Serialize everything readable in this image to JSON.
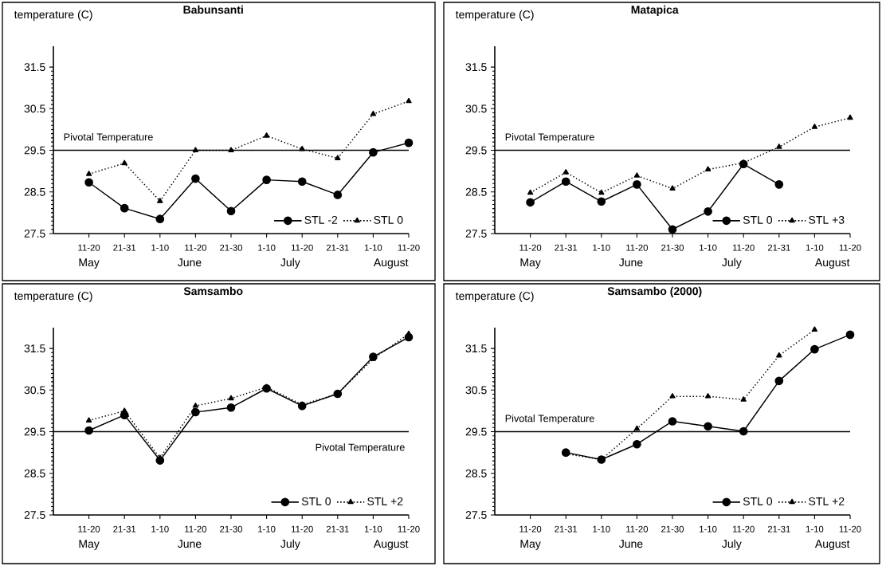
{
  "chart_data": [
    {
      "type": "line",
      "title": "Babunsanti",
      "ylabel": "temperature (C)",
      "categories": [
        "11-20",
        "21-31",
        "1-10",
        "11-20",
        "21-30",
        "1-10",
        "11-20",
        "21-31",
        "1-10",
        "11-20"
      ],
      "annotations": [
        "May",
        "June",
        "July",
        "August"
      ],
      "series": [
        {
          "name": "STL -2",
          "color": "#000000",
          "marker": "circle",
          "line_style": "solid",
          "values": [
            28.73,
            28.11,
            27.85,
            28.82,
            28.04,
            28.79,
            28.75,
            28.43,
            29.45,
            29.68
          ]
        },
        {
          "name": "STL 0",
          "color": "#000000",
          "marker": "triangle",
          "line_style": "dotted",
          "values": [
            28.93,
            29.19,
            28.28,
            29.5,
            29.5,
            29.85,
            29.53,
            29.31,
            30.37,
            30.68
          ]
        }
      ],
      "ylim": [
        27.5,
        32
      ],
      "yticks": [
        27.5,
        28.5,
        29.5,
        30.5,
        31.5
      ],
      "ref_lines": [
        {
          "axis": "y",
          "value": 29.5,
          "label": "Pivotal Temperature"
        }
      ],
      "legend": "bottom right"
    },
    {
      "type": "line",
      "title": "Matapica",
      "ylabel": "temperature (C)",
      "categories": [
        "11-20",
        "21-31",
        "1-10",
        "11-20",
        "21-30",
        "1-10",
        "11-20",
        "21-31",
        "1-10",
        "11-20"
      ],
      "annotations": [
        "May",
        "June",
        "July",
        "August"
      ],
      "series": [
        {
          "name": "STL 0",
          "color": "#000000",
          "marker": "circle",
          "line_style": "solid",
          "values": [
            28.25,
            28.75,
            28.27,
            28.68,
            27.6,
            28.03,
            29.17,
            28.68,
            null,
            null
          ]
        },
        {
          "name": "STL +3",
          "color": "#000000",
          "marker": "triangle",
          "line_style": "dotted",
          "values": [
            28.48,
            28.97,
            28.48,
            28.89,
            28.58,
            29.04,
            29.2,
            29.58,
            30.06,
            30.28
          ]
        }
      ],
      "ylim": [
        27.5,
        32
      ],
      "yticks": [
        27.5,
        28.5,
        29.5,
        30.5,
        31.5
      ],
      "ref_lines": [
        {
          "axis": "y",
          "value": 29.5,
          "label": "Pivotal Temperature"
        }
      ],
      "legend": "bottom right"
    },
    {
      "type": "line",
      "title": "Samsambo",
      "ylabel": "temperature (C)",
      "categories": [
        "11-20",
        "21-31",
        "1-10",
        "11-20",
        "21-30",
        "1-10",
        "11-20",
        "21-31",
        "1-10",
        "11-20"
      ],
      "annotations": [
        "May",
        "June",
        "July",
        "August"
      ],
      "series": [
        {
          "name": "STL 0",
          "color": "#000000",
          "marker": "circle",
          "line_style": "solid",
          "values": [
            29.53,
            29.9,
            28.81,
            29.97,
            30.08,
            30.54,
            30.12,
            30.41,
            31.3,
            31.77
          ]
        },
        {
          "name": "STL +2",
          "color": "#000000",
          "marker": "triangle",
          "line_style": "dotted",
          "values": [
            29.77,
            30.0,
            28.87,
            30.12,
            30.3,
            30.57,
            30.15,
            30.41,
            31.25,
            31.85
          ]
        }
      ],
      "ylim": [
        27.5,
        32
      ],
      "yticks": [
        27.5,
        28.5,
        29.5,
        30.5,
        31.5
      ],
      "ref_lines": [
        {
          "axis": "y",
          "value": 29.5,
          "label": "Pivotal Temperature"
        }
      ],
      "legend": "bottom right"
    },
    {
      "type": "line",
      "title": "Samsambo (2000)",
      "ylabel": "temperature (C)",
      "categories": [
        "11-20",
        "21-31",
        "1-10",
        "11-20",
        "21-30",
        "1-10",
        "11-20",
        "21-31",
        "1-10",
        "11-20"
      ],
      "annotations": [
        "May",
        "June",
        "July",
        "August"
      ],
      "series": [
        {
          "name": "STL 0",
          "color": "#000000",
          "marker": "circle",
          "line_style": "solid",
          "values": [
            null,
            29.0,
            28.83,
            29.2,
            29.75,
            29.63,
            29.51,
            30.72,
            31.48,
            31.83
          ]
        },
        {
          "name": "STL +2",
          "color": "#000000",
          "marker": "triangle",
          "line_style": "dotted",
          "values": [
            null,
            28.97,
            28.83,
            29.57,
            30.35,
            30.35,
            30.27,
            31.33,
            31.95,
            null
          ]
        }
      ],
      "ylim": [
        27.5,
        32
      ],
      "yticks": [
        27.5,
        28.5,
        29.5,
        30.5,
        31.5
      ],
      "ref_lines": [
        {
          "axis": "y",
          "value": 29.5,
          "label": "Pivotal Temperature"
        }
      ],
      "legend": "bottom right"
    }
  ]
}
